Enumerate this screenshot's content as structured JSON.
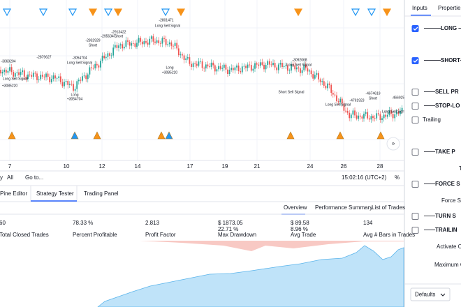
{
  "chart": {
    "annotations": [
      "-3069204",
      "Long Sell Signal",
      "+3085220",
      "-2879627",
      "Long Sell Signal",
      "-3054704",
      "Long",
      "+3054704",
      "-2832929",
      "Short",
      "-2956347",
      "-2913422",
      "Short",
      "-2801471",
      "Long Sell Signal",
      "Long",
      "+3085220",
      "-3092068",
      "Long Sell Signal",
      "Short Sell Signal",
      "Long Sell Signal",
      "-4791923",
      "-4674619",
      "Short",
      "Long Sell Signal",
      "-466925"
    ],
    "x_axis_labels": [
      "7",
      "10",
      "12",
      "14",
      "17",
      "19",
      "21",
      "24",
      "26",
      "28"
    ]
  },
  "toolbar": {
    "range_prefix": "y",
    "range": "All",
    "goto": "Go to...",
    "time": "15:02:16 (UTC+2)",
    "scale": "%"
  },
  "bottom_tabs": [
    "Pine Editor",
    "Strategy Tester",
    "Trading Panel"
  ],
  "report_tabs": [
    "Overview",
    "Performance Summary",
    "List of Trades"
  ],
  "stats": [
    {
      "value": "60",
      "label": "Total Closed Trades"
    },
    {
      "value": "78.33 %",
      "label": "Percent Profitable"
    },
    {
      "value": "2.813",
      "label": "Profit Factor"
    },
    {
      "value": "$ 1873.05",
      "sub": "22.71 %",
      "label": "Max Drawdown"
    },
    {
      "value": "$ 89.58",
      "sub": "8.96 %",
      "label": "Avg Trade"
    },
    {
      "value": "134",
      "label": "Avg # Bars in Trades"
    }
  ],
  "settings": {
    "tabs": [
      "Inputs",
      "Propertie"
    ],
    "inputs": [
      {
        "label": "———LONG —",
        "checkbox": true,
        "checked": true
      },
      {
        "label": "———SHORT—",
        "checkbox": true,
        "checked": true
      },
      {
        "label": "——SELL PR",
        "checkbox": true,
        "checked": false
      },
      {
        "label": "——STOP-LO",
        "checkbox": true,
        "checked": false
      },
      {
        "label": "Trailing",
        "checkbox": true,
        "checked": false
      },
      {
        "label": "——TAKE P",
        "checkbox": true,
        "checked": false
      },
      {
        "label": "T",
        "checkbox": false
      },
      {
        "label": "——FORCE S",
        "checkbox": true,
        "checked": false
      },
      {
        "label": "Force Se",
        "checkbox": false
      },
      {
        "label": "——TURN S",
        "checkbox": true,
        "checked": false
      },
      {
        "label": "——TRAILIN",
        "checkbox": true,
        "checked": false
      },
      {
        "label": "Activate O",
        "checkbox": false
      },
      {
        "label": "Maximum C",
        "checkbox": false
      }
    ],
    "defaults": "Defaults"
  }
}
